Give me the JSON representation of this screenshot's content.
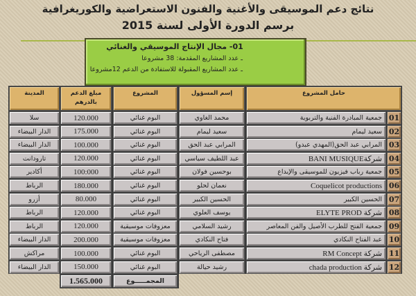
{
  "title": {
    "line1": "نتائج دعم الموسيقى والأغنية والفنون الاستعراضية والكوريغرافية",
    "line2": "برسم  الدورة الأولى لسنة 2015"
  },
  "summary": {
    "heading": "01- مجال الإنتاج الموسيقي والغنائي",
    "line1": "ـ عدد المشاريع المقدمة: 38 مشروعا",
    "line2": "ـ عدد المشاريع المقبولة للاستفادة من الدعم 12مشروعا"
  },
  "table": {
    "headers": {
      "holder": "حامل المشروع",
      "responsible": "إسم المسؤول",
      "project": "المشروع",
      "amount": "مبلغ الدعم بالدرهم",
      "city": "المدينة"
    },
    "rows": [
      {
        "n": "01",
        "holder": "جمعية المبادرة الفنية   والتربوية",
        "responsible": "محمد الغاوي",
        "project": "البوم غنائي",
        "amount": "120.000",
        "city": "سلا"
      },
      {
        "n": "02",
        "holder": "سعيد ليمام",
        "responsible": "سعيد ليمام",
        "project": "البوم غنائي",
        "amount": "175.000",
        "city": "الدار البيضاء"
      },
      {
        "n": "03",
        "holder": "المرابي عبد الحق(المهدي عبدو)",
        "responsible": "المرابي عبد الحق",
        "project": "البوم غنائي",
        "amount": "100.000",
        "city": "الدار البيضاء"
      },
      {
        "n": "04",
        "holder": "شركةBANI MUSIQUE",
        "responsible": "عبد اللطيف سياسي",
        "project": "البوم غنائي",
        "amount": "120.000",
        "city": "تارودانت"
      },
      {
        "n": "05",
        "holder": "جمعية رباب فيزيون للموسيقى والإبداع",
        "responsible": "بوحسين فولان",
        "project": "البوم غنائي",
        "amount": "100:000",
        "city": "أكادير"
      },
      {
        "n": "06",
        "holder": "Coquelicot productions",
        "responsible": "نعمان لحلو",
        "project": "البوم غنائي",
        "amount": "180.000",
        "city": "الرباط"
      },
      {
        "n": "07",
        "holder": "الحسين الكبير",
        "responsible": "الحسين الكبير",
        "project": "البوم غنائي",
        "amount": "80.000",
        "city": "أزرو"
      },
      {
        "n": "08",
        "holder": "شركة ELYTE PROD",
        "responsible": "يوسف العلوي",
        "project": "البوم غنائي",
        "amount": "120.000",
        "city": "الرباط"
      },
      {
        "n": "09",
        "holder": "جمعية الفتح للطرب الأصيل والفن    المعاصر",
        "responsible": "رشيد السلامي",
        "project": "معزوفات موسيقية",
        "amount": "120.000",
        "city": "الرباط"
      },
      {
        "n": "10",
        "holder": "عبد الفتاح النكادي",
        "responsible": "فتاح النكادي",
        "project": "معزوفات موسيقية",
        "amount": "200.000",
        "city": "الدار البيضاء"
      },
      {
        "n": "11",
        "holder": "شركة RM Concept",
        "responsible": "مصطفى الرياحي",
        "project": "البوم غنائي",
        "amount": "100.000",
        "city": "مراكش"
      },
      {
        "n": "12",
        "holder": "شركة chada production",
        "responsible": "رشيد حيالة",
        "project": "البوم غنائي",
        "amount": "150.000",
        "city": "الدار البيضاء"
      }
    ],
    "total_label": "المجمـــــوع",
    "total": "1.565.000"
  },
  "colors": {
    "header": "#ddb46c",
    "box": "#9acd45",
    "cell": "#cbc6c6",
    "number": "#c9a47c"
  }
}
